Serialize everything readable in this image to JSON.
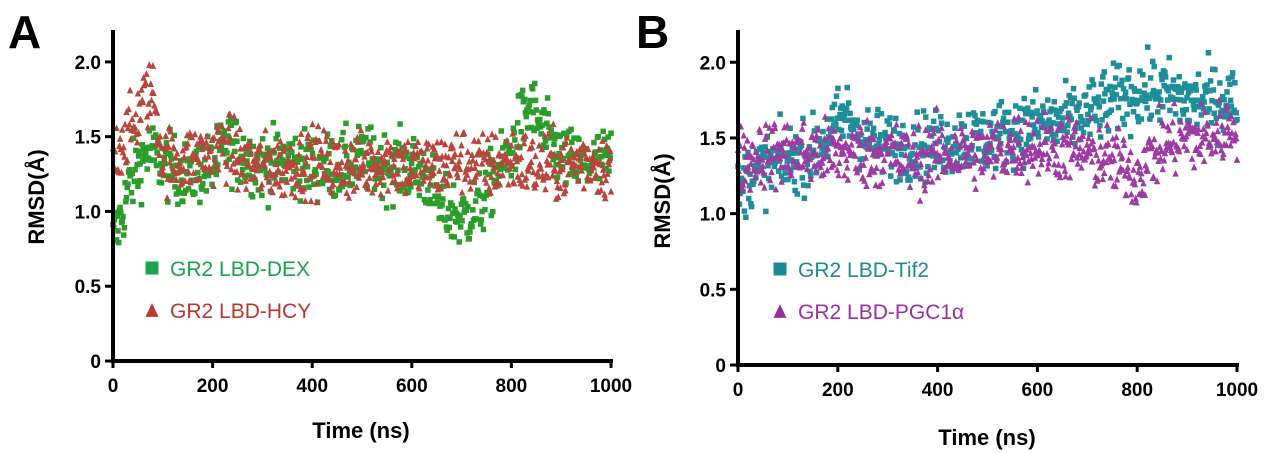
{
  "chart_data": [
    {
      "panel": "A",
      "type": "scatter",
      "xlabel": "Time (ns)",
      "ylabel": "RMSD(Å)",
      "xlim": [
        0,
        1000
      ],
      "ylim": [
        0,
        2.2
      ],
      "xticks": [
        "0",
        "200",
        "400",
        "600",
        "800",
        "1000"
      ],
      "yticks": [
        "0",
        "0.5",
        "1.0",
        "1.5",
        "2.0"
      ],
      "legend_position": "lower-left",
      "series": [
        {
          "name": "GR2 LBD-DEX",
          "marker": "square",
          "legend_color": "#1aa34a",
          "color": "#2a9d2a",
          "x": [
            0,
            10,
            20,
            30,
            50,
            70,
            90,
            110,
            150,
            200,
            230,
            250,
            300,
            350,
            400,
            450,
            500,
            550,
            600,
            640,
            660,
            680,
            700,
            720,
            740,
            760,
            800,
            820,
            840,
            860,
            900,
            950,
            1000
          ],
          "y": [
            0.8,
            0.9,
            1.0,
            1.15,
            1.3,
            1.4,
            1.35,
            1.3,
            1.25,
            1.3,
            1.45,
            1.4,
            1.3,
            1.35,
            1.3,
            1.3,
            1.35,
            1.3,
            1.3,
            1.2,
            1.0,
            1.0,
            0.95,
            1.0,
            1.05,
            1.2,
            1.4,
            1.6,
            1.7,
            1.55,
            1.35,
            1.3,
            1.35
          ]
        },
        {
          "name": "GR2 LBD-HCY",
          "marker": "triangle",
          "legend_color": "#b5392f",
          "color": "#b8463c",
          "x": [
            0,
            20,
            40,
            60,
            80,
            100,
            150,
            200,
            230,
            250,
            300,
            350,
            400,
            450,
            500,
            550,
            600,
            650,
            700,
            750,
            800,
            850,
            900,
            950,
            1000
          ],
          "y": [
            1.35,
            1.5,
            1.55,
            1.75,
            1.8,
            1.35,
            1.35,
            1.4,
            1.45,
            1.35,
            1.3,
            1.3,
            1.35,
            1.3,
            1.3,
            1.35,
            1.3,
            1.3,
            1.35,
            1.3,
            1.35,
            1.3,
            1.3,
            1.35,
            1.3
          ]
        }
      ]
    },
    {
      "panel": "B",
      "type": "scatter",
      "xlabel": "Time (ns)",
      "ylabel": "RMSD(Å)",
      "xlim": [
        0,
        1000
      ],
      "ylim": [
        0,
        2.2
      ],
      "xticks": [
        "0",
        "200",
        "400",
        "600",
        "800",
        "1000"
      ],
      "yticks": [
        "0",
        "0.5",
        "1.0",
        "1.5",
        "2.0"
      ],
      "legend_position": "lower-left",
      "series": [
        {
          "name": "GR2 LBD-Tif2",
          "marker": "square",
          "legend_color": "#1b8a96",
          "color": "#1e8f9a",
          "x": [
            0,
            20,
            50,
            100,
            150,
            200,
            220,
            250,
            300,
            350,
            400,
            450,
            500,
            550,
            600,
            650,
            700,
            750,
            800,
            850,
            900,
            950,
            1000
          ],
          "y": [
            1.1,
            1.25,
            1.3,
            1.35,
            1.4,
            1.6,
            1.65,
            1.5,
            1.45,
            1.45,
            1.45,
            1.5,
            1.5,
            1.55,
            1.6,
            1.6,
            1.65,
            1.75,
            1.8,
            1.8,
            1.75,
            1.75,
            1.75
          ]
        },
        {
          "name": "GR2 LBD-PGC1α",
          "marker": "triangle",
          "legend_color": "#9b2fa0",
          "color": "#9e3aa3",
          "x": [
            0,
            50,
            100,
            150,
            200,
            250,
            300,
            350,
            400,
            450,
            500,
            550,
            600,
            650,
            700,
            750,
            780,
            800,
            820,
            850,
            900,
            950,
            1000
          ],
          "y": [
            1.35,
            1.4,
            1.4,
            1.4,
            1.4,
            1.4,
            1.4,
            1.35,
            1.4,
            1.4,
            1.4,
            1.45,
            1.45,
            1.45,
            1.4,
            1.35,
            1.3,
            1.25,
            1.35,
            1.45,
            1.5,
            1.5,
            1.6
          ]
        }
      ]
    }
  ]
}
